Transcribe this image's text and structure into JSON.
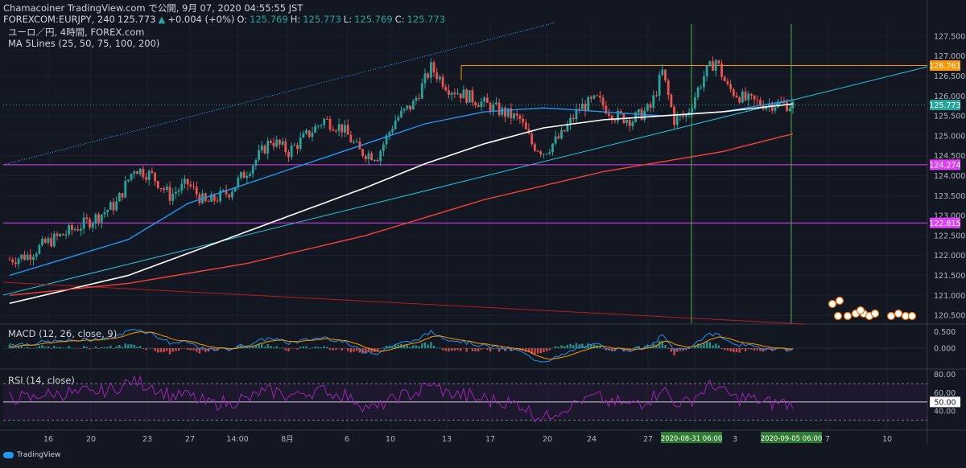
{
  "header": {
    "line1": "Chamacoiner TradingView.com で公開, 9月 07, 2020 04:55:55 JST",
    "symbol": "FOREXCOM:EURJPY, 240",
    "last": "125.773",
    "arrow": "▲",
    "change": "+0.004 (+0%)",
    "o_label": "O:",
    "o": "125.769",
    "h_label": "H:",
    "h": "125.773",
    "l_label": "L:",
    "l": "125.769",
    "c_label": "C:",
    "c": "125.773",
    "pair": "ユーロ／円, 4時間, FOREX.com",
    "ma": "MA 5Lines (25, 50, 75, 100, 200)"
  },
  "macd_label": "MACD (12, 26, close, 9)",
  "rsi_label": "RSI (14, close)",
  "branding": "TradingView",
  "colors": {
    "bg": "#131722",
    "up": "#26a69a",
    "down": "#ef5350",
    "ma_blue": "#2196f3",
    "ma_white": "#ffffff",
    "ma_red": "#f44336",
    "trend": "#26c6da",
    "magenta": "#e040fb",
    "orange": "#ff9800",
    "green_v": "#4caf50",
    "rsi": "#9c27b0"
  },
  "chart_data": [
    {
      "type": "candlestick",
      "pane": "price",
      "y_axis_ticks": [
        "127.500",
        "127.000",
        "126.500",
        "126.000",
        "125.500",
        "125.000",
        "124.500",
        "124.000",
        "123.500",
        "123.000",
        "122.500",
        "122.000",
        "121.500",
        "121.000",
        "120.500"
      ],
      "ylim": [
        120.3,
        127.8
      ],
      "x_axis_ticks": [
        "16",
        "20",
        "23",
        "27",
        "14:00",
        "8月",
        "6",
        "10",
        "13",
        "17",
        "20",
        "24",
        "27",
        "31",
        "3",
        "7",
        "10"
      ],
      "x_time_labels": [
        "2020-08-31  06:00",
        "2020-09-05  06:00"
      ],
      "price_tags": [
        {
          "value": "126.761",
          "color": "#ff9800"
        },
        {
          "value": "125.773",
          "color": "#26a69a"
        },
        {
          "value": "124.274",
          "color": "#e040fb"
        },
        {
          "value": "122.815",
          "color": "#e040fb"
        }
      ],
      "horizontal_lines": [
        124.274,
        122.815
      ],
      "resistance": 126.761,
      "anchors": [
        [
          0,
          121.9
        ],
        [
          6,
          122.0
        ],
        [
          12,
          122.3
        ],
        [
          20,
          122.6
        ],
        [
          28,
          122.9
        ],
        [
          36,
          123.3
        ],
        [
          42,
          124.2
        ],
        [
          48,
          124.0
        ],
        [
          54,
          123.5
        ],
        [
          60,
          123.8
        ],
        [
          66,
          123.3
        ],
        [
          74,
          123.6
        ],
        [
          82,
          124.3
        ],
        [
          88,
          124.9
        ],
        [
          94,
          124.6
        ],
        [
          100,
          125.0
        ],
        [
          106,
          125.4
        ],
        [
          112,
          125.2
        ],
        [
          118,
          124.6
        ],
        [
          124,
          124.5
        ],
        [
          130,
          125.4
        ],
        [
          136,
          125.8
        ],
        [
          142,
          126.7
        ],
        [
          148,
          126.2
        ],
        [
          154,
          126.0
        ],
        [
          160,
          125.8
        ],
        [
          166,
          125.6
        ],
        [
          172,
          125.4
        ],
        [
          176,
          124.8
        ],
        [
          180,
          124.6
        ],
        [
          186,
          125.0
        ],
        [
          192,
          125.7
        ],
        [
          198,
          125.9
        ],
        [
          204,
          125.5
        ],
        [
          210,
          125.4
        ],
        [
          216,
          125.7
        ],
        [
          220,
          126.6
        ],
        [
          224,
          125.4
        ],
        [
          228,
          125.5
        ],
        [
          234,
          126.5
        ],
        [
          238,
          126.9
        ],
        [
          242,
          126.2
        ],
        [
          248,
          125.9
        ],
        [
          254,
          125.8
        ],
        [
          260,
          125.8
        ],
        [
          264,
          125.77
        ]
      ],
      "moving_averages": [
        {
          "name": "MA blue",
          "color": "#2196f3",
          "points": [
            [
              0,
              121.5
            ],
            [
              40,
              122.4
            ],
            [
              60,
              123.3
            ],
            [
              80,
              123.8
            ],
            [
              100,
              124.3
            ],
            [
              120,
              124.8
            ],
            [
              140,
              125.3
            ],
            [
              160,
              125.6
            ],
            [
              180,
              125.7
            ],
            [
              200,
              125.6
            ],
            [
              220,
              125.5
            ],
            [
              240,
              125.6
            ],
            [
              264,
              125.9
            ]
          ]
        },
        {
          "name": "MA white",
          "color": "#ffffff",
          "points": [
            [
              0,
              120.8
            ],
            [
              40,
              121.5
            ],
            [
              80,
              122.6
            ],
            [
              120,
              123.7
            ],
            [
              140,
              124.3
            ],
            [
              160,
              124.8
            ],
            [
              180,
              125.2
            ],
            [
              200,
              125.4
            ],
            [
              220,
              125.5
            ],
            [
              240,
              125.6
            ],
            [
              264,
              125.8
            ]
          ]
        },
        {
          "name": "MA red",
          "color": "#f44336",
          "points": [
            [
              0,
              121.0
            ],
            [
              40,
              121.3
            ],
            [
              80,
              121.8
            ],
            [
              120,
              122.5
            ],
            [
              160,
              123.4
            ],
            [
              200,
              124.1
            ],
            [
              240,
              124.6
            ],
            [
              264,
              125.05
            ]
          ]
        }
      ]
    },
    {
      "type": "macd",
      "pane": "macd",
      "y_axis_ticks": [
        "0.500",
        "0.000"
      ],
      "ylim": [
        -0.6,
        0.7
      ]
    },
    {
      "type": "line",
      "pane": "rsi",
      "y_axis_ticks": [
        "80.00",
        "60.00",
        "40.00"
      ],
      "current": "50.00",
      "levels": [
        70,
        30
      ],
      "ylim": [
        20,
        85
      ]
    }
  ]
}
